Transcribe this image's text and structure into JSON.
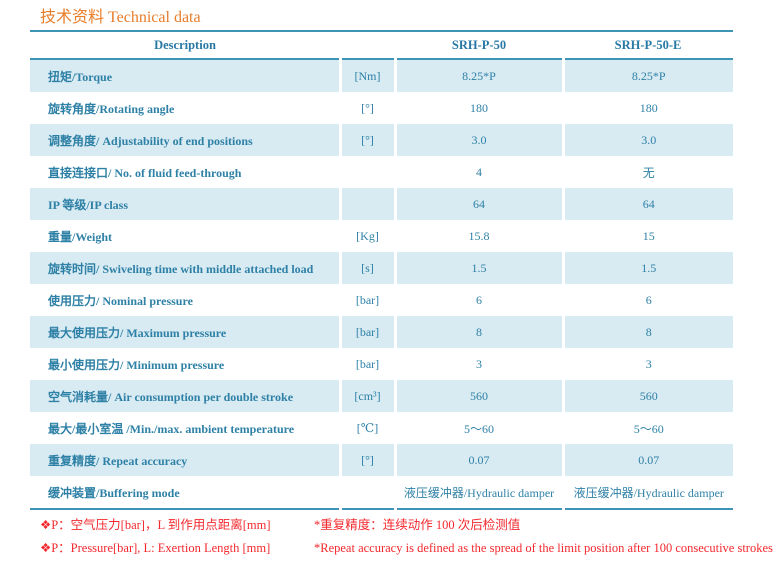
{
  "title": "技术资料  Technical data",
  "table": {
    "headers": {
      "description": "Description",
      "unit": "",
      "col1": "SRH-P-50",
      "col2": "SRH-P-50-E"
    },
    "rows": [
      {
        "desc": "扭矩/Torque",
        "unit": "[Nm]",
        "v1": "8.25*P",
        "v2": "8.25*P"
      },
      {
        "desc": "旋转角度/Rotating angle",
        "unit": "[°]",
        "v1": "180",
        "v2": "180"
      },
      {
        "desc": "调整角度/ Adjustability of end positions",
        "unit": "[°]",
        "v1": "3.0",
        "v2": "3.0"
      },
      {
        "desc": "直接连接口/ No. of fluid feed-through",
        "unit": "",
        "v1": "4",
        "v2": "无"
      },
      {
        "desc": "IP 等级/IP class",
        "unit": "",
        "v1": "64",
        "v2": "64"
      },
      {
        "desc": "重量/Weight",
        "unit": "[Kg]",
        "v1": "15.8",
        "v2": "15"
      },
      {
        "desc": "旋转时间/ Swiveling time with middle attached load",
        "unit": "[s]",
        "v1": "1.5",
        "v2": "1.5"
      },
      {
        "desc": "使用压力/ Nominal pressure",
        "unit": "[bar]",
        "v1": "6",
        "v2": "6"
      },
      {
        "desc": "最大使用压力/ Maximum pressure",
        "unit": "[bar]",
        "v1": "8",
        "v2": "8"
      },
      {
        "desc": "最小使用压力/ Minimum pressure",
        "unit": "[bar]",
        "v1": "3",
        "v2": "3"
      },
      {
        "desc": "空气消耗量/ Air consumption per double stroke",
        "unit": "[cm³]",
        "v1": "560",
        "v2": "560"
      },
      {
        "desc": "最大/最小室温  /Min./max. ambient temperature",
        "unit": "[℃]",
        "v1": "5～60",
        "v2": "5～60"
      },
      {
        "desc": "重复精度/ Repeat accuracy",
        "unit": "[°]",
        "v1": "0.07",
        "v2": "0.07"
      },
      {
        "desc": "缓冲装置/Buffering mode",
        "unit": "",
        "v1": "液压缓冲器/Hydraulic damper",
        "v2": "液压缓冲器/Hydraulic damper"
      }
    ]
  },
  "footnotes": {
    "line1_left": "❖P：空气压力[bar]，L 到作用点距离[mm]",
    "line1_right": "*重复精度：连续动作 100 次后检测值",
    "line2_left": "❖P：Pressure[bar], L: Exertion Length [mm]",
    "line2_right": "*Repeat accuracy is defined as the spread of the limit position after 100 consecutive strokes"
  },
  "colors": {
    "title_orange": "#e87d2a",
    "table_teal": "#2e81a6",
    "header_teal": "#2878a5",
    "rule_teal": "#3d95b5",
    "row_blue": "#d8eaf2",
    "note_red": "#f4282d"
  }
}
